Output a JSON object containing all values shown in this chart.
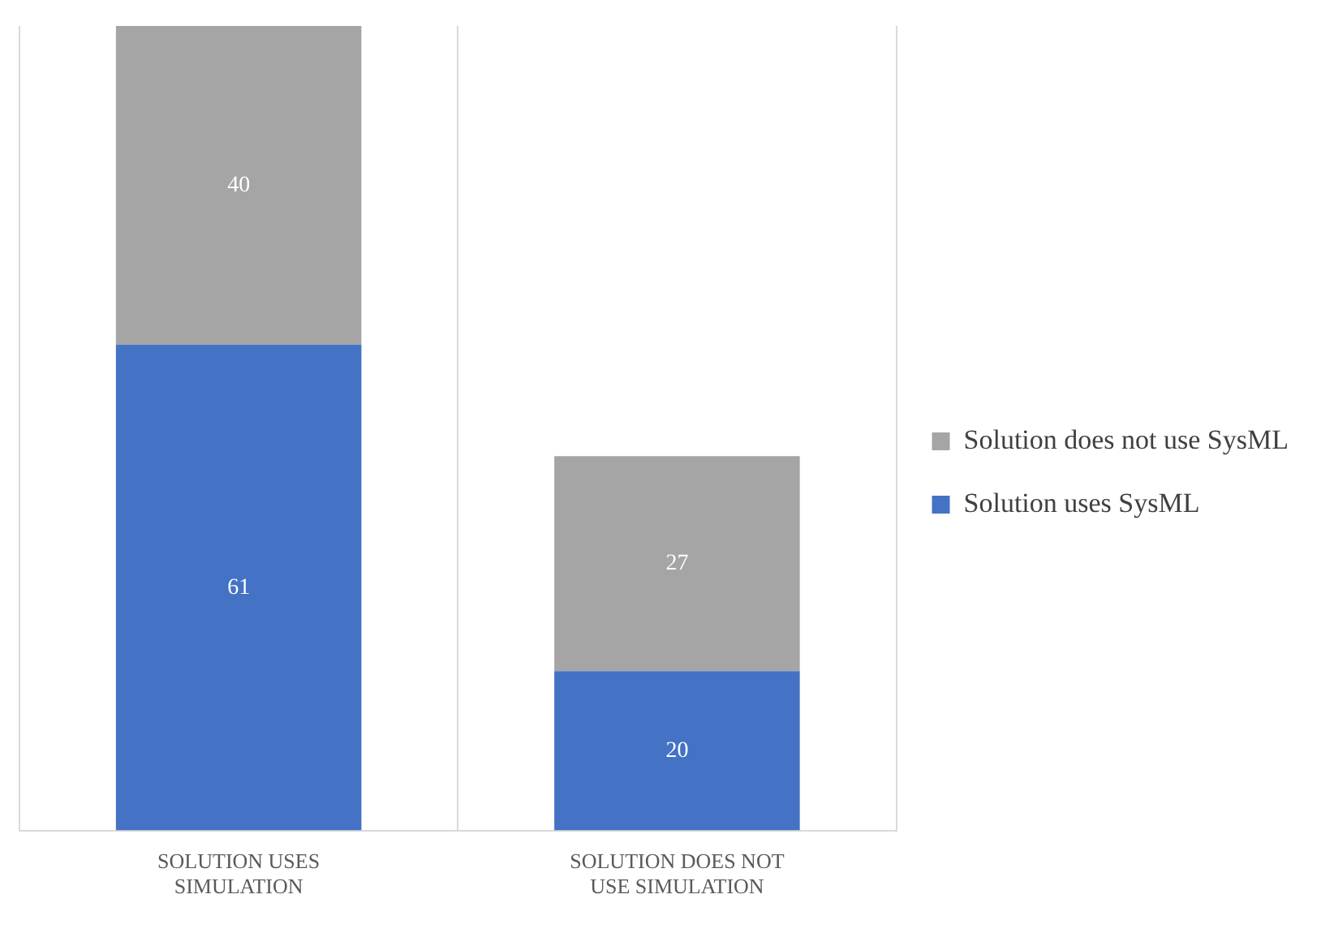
{
  "chart_data": {
    "type": "bar",
    "stacked": true,
    "data_labels": true,
    "categories": [
      "SOLUTION USES SIMULATION",
      "SOLUTION DOES NOT USE SIMULATION"
    ],
    "series": [
      {
        "name": "Solution uses SysML",
        "color": "#4472c4",
        "values": [
          61,
          20
        ]
      },
      {
        "name": "Solution does not use SysML",
        "color": "#a5a5a5",
        "values": [
          40,
          27
        ]
      }
    ],
    "legend": "right",
    "grid": "x"
  }
}
